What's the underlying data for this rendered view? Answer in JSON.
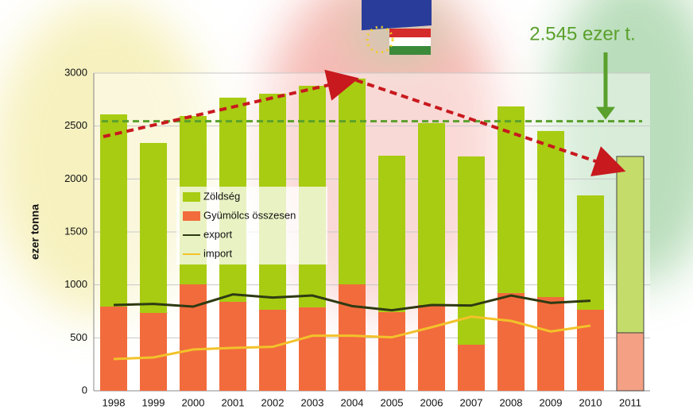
{
  "chart_data": {
    "type": "stacked_bar_line",
    "y_axis_label": "ezer tonna",
    "categories": [
      "1998",
      "1999",
      "2000",
      "2001",
      "2002",
      "2003",
      "2004",
      "2005",
      "2006",
      "2007",
      "2008",
      "2009",
      "2010",
      "2011"
    ],
    "series": [
      {
        "name": "Gyümölcs összesen",
        "kind": "bar",
        "color": "#f26b3c",
        "projected_color": "#f4a084",
        "values": [
          795,
          735,
          1005,
          840,
          765,
          788,
          1005,
          743,
          810,
          435,
          923,
          885,
          765,
          548
        ]
      },
      {
        "name": "Zöldség",
        "kind": "bar",
        "color": "#a8cc12",
        "projected_color": "#c4dc6a",
        "values": [
          1815,
          1605,
          1590,
          1928,
          2040,
          2092,
          1943,
          1477,
          1718,
          1778,
          1762,
          1568,
          1080,
          1665
        ]
      },
      {
        "name": "export",
        "kind": "line",
        "color": "#2e3a12",
        "values": [
          810,
          820,
          795,
          910,
          880,
          900,
          800,
          760,
          810,
          805,
          900,
          830,
          850,
          null
        ]
      },
      {
        "name": "import",
        "kind": "line",
        "color": "#f2c22a",
        "values": [
          300,
          315,
          390,
          405,
          415,
          520,
          520,
          505,
          600,
          700,
          660,
          560,
          615,
          null
        ]
      }
    ],
    "legend_order": [
      1,
      0,
      2,
      3
    ],
    "projected_categories": [
      "2011"
    ],
    "reference_line": {
      "value": 2545,
      "color": "#5aa02c",
      "label": "2.545 ezer t."
    },
    "ylim": [
      0,
      3000
    ],
    "yticks": [
      0,
      500,
      1000,
      1500,
      2000,
      2500,
      3000
    ],
    "grid": true
  }
}
